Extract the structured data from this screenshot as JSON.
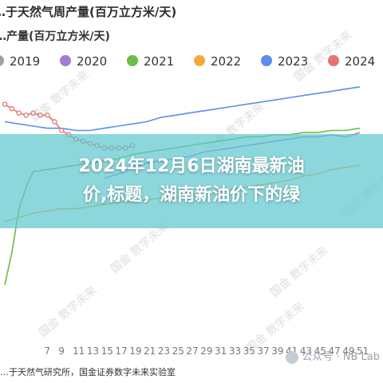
{
  "header": {
    "title": "…于天然气周产量(百万立方米/天)"
  },
  "chart_data": {
    "type": "line",
    "ylabel": "…产量(百万立方米/天)",
    "x_ticks": [
      "7",
      "9",
      "11",
      "13",
      "15",
      "17",
      "19",
      "21",
      "23",
      "25",
      "27",
      "29",
      "31",
      "33",
      "35",
      "37",
      "39",
      "41",
      "43",
      "45",
      "47",
      "49",
      "51"
    ],
    "series": [
      {
        "name": "2019",
        "color": "#9aa0a6",
        "x": [],
        "y": []
      },
      {
        "name": "2020",
        "color": "#a57bd6",
        "x": [
          15,
          17,
          19,
          21,
          23,
          25,
          27,
          29,
          31,
          33,
          35,
          37,
          39,
          41,
          43,
          45,
          47,
          49,
          51
        ],
        "y": [
          84,
          86,
          89,
          91,
          92,
          93,
          94,
          96,
          97,
          98,
          99,
          100,
          101,
          102,
          103,
          103,
          104,
          103,
          105
        ]
      },
      {
        "name": "2021",
        "color": "#6abd45",
        "x": [
          1,
          2,
          3,
          4,
          5,
          7,
          9,
          11,
          13,
          15,
          17,
          19,
          21,
          23,
          25,
          27,
          29,
          31,
          33,
          35,
          37,
          39,
          41,
          43,
          45,
          47,
          49,
          51
        ],
        "y": [
          35,
          50,
          70,
          80,
          87,
          88,
          89,
          90,
          91,
          92,
          93,
          95,
          96,
          97,
          98,
          99,
          100,
          101,
          102,
          103,
          103,
          104,
          104,
          105,
          105,
          106,
          106,
          107
        ]
      },
      {
        "name": "2022",
        "color": "#f5a93d",
        "x": [
          1,
          3,
          5,
          7,
          9,
          11,
          13,
          15,
          17,
          19,
          21,
          23,
          25,
          27,
          29,
          31,
          33,
          35,
          37,
          39,
          41,
          43,
          45,
          47,
          49,
          51
        ],
        "y": [
          64,
          66,
          68,
          69,
          70,
          70,
          71,
          72,
          73,
          73,
          74,
          75,
          75,
          76,
          77,
          78,
          79,
          80,
          81,
          82,
          83,
          85,
          86,
          88,
          89,
          90
        ]
      },
      {
        "name": "2023",
        "color": "#5b8def",
        "x": [
          1,
          3,
          5,
          7,
          9,
          11,
          13,
          15,
          17,
          19,
          21,
          23,
          25,
          27,
          29,
          31,
          33,
          35,
          37,
          39,
          41,
          43,
          45,
          47,
          49,
          51
        ],
        "y": [
          110,
          109,
          108,
          107,
          107,
          106,
          106,
          107,
          108,
          109,
          110,
          112,
          113,
          114,
          115,
          116,
          117,
          118,
          119,
          120,
          121,
          122,
          123,
          124,
          125,
          126
        ]
      },
      {
        "name": "2024",
        "color": "#e57373",
        "x": [
          1,
          2,
          3,
          4,
          5,
          6,
          7,
          8,
          9,
          10,
          11,
          12,
          13,
          14,
          15,
          16,
          17,
          18,
          19
        ],
        "y": [
          118,
          116,
          114,
          113,
          114,
          113,
          113,
          110,
          106,
          104,
          102,
          101,
          100,
          99,
          98,
          98,
          98,
          98,
          99
        ]
      }
    ],
    "legend_position": "top",
    "grid": false
  },
  "banner": {
    "line1": "2024年12月6日湖南最新油",
    "line2": "价,​标题，湖南新油价下的绿"
  },
  "source": "…于天然气研究所，国金证券数字未来实验室",
  "watermark_text": "国金 数字未来",
  "attribution": "公众号 · NB Lab"
}
